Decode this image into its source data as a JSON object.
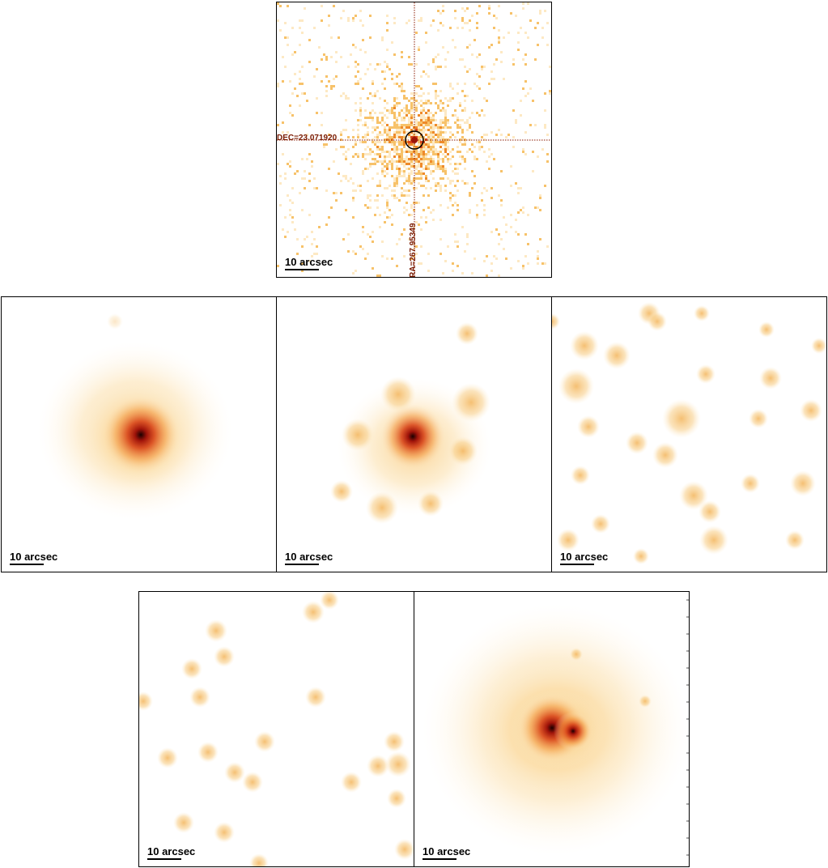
{
  "colors": {
    "background": "#ffffff",
    "frame": "#000000",
    "crosshair": "#8b1a00",
    "colormap": [
      "#ffffff",
      "#fde9c4",
      "#f7c26a",
      "#ee8a2a",
      "#d8461a",
      "#a0140a",
      "#2a0000"
    ]
  },
  "panels": [
    {
      "name": "panel-raw-counts",
      "style": "pixelated-counts",
      "scale_label": "10 arcsec",
      "dec_label": "DEC=23.071920",
      "ra_label": "RA=267.95349",
      "has_crosshair": true,
      "has_circle": true
    },
    {
      "name": "panel-smoothed-1",
      "style": "smoothed-diffuse",
      "scale_label": "10 arcsec"
    },
    {
      "name": "panel-smoothed-2",
      "style": "smoothed-clumpy",
      "scale_label": "10 arcsec"
    },
    {
      "name": "panel-smoothed-3",
      "style": "noise-blobs",
      "scale_label": "10 arcsec"
    },
    {
      "name": "panel-smoothed-4",
      "style": "sparse-blobs",
      "scale_label": "10 arcsec"
    },
    {
      "name": "panel-smoothed-5",
      "style": "bright-extended",
      "scale_label": "10 arcsec"
    }
  ]
}
